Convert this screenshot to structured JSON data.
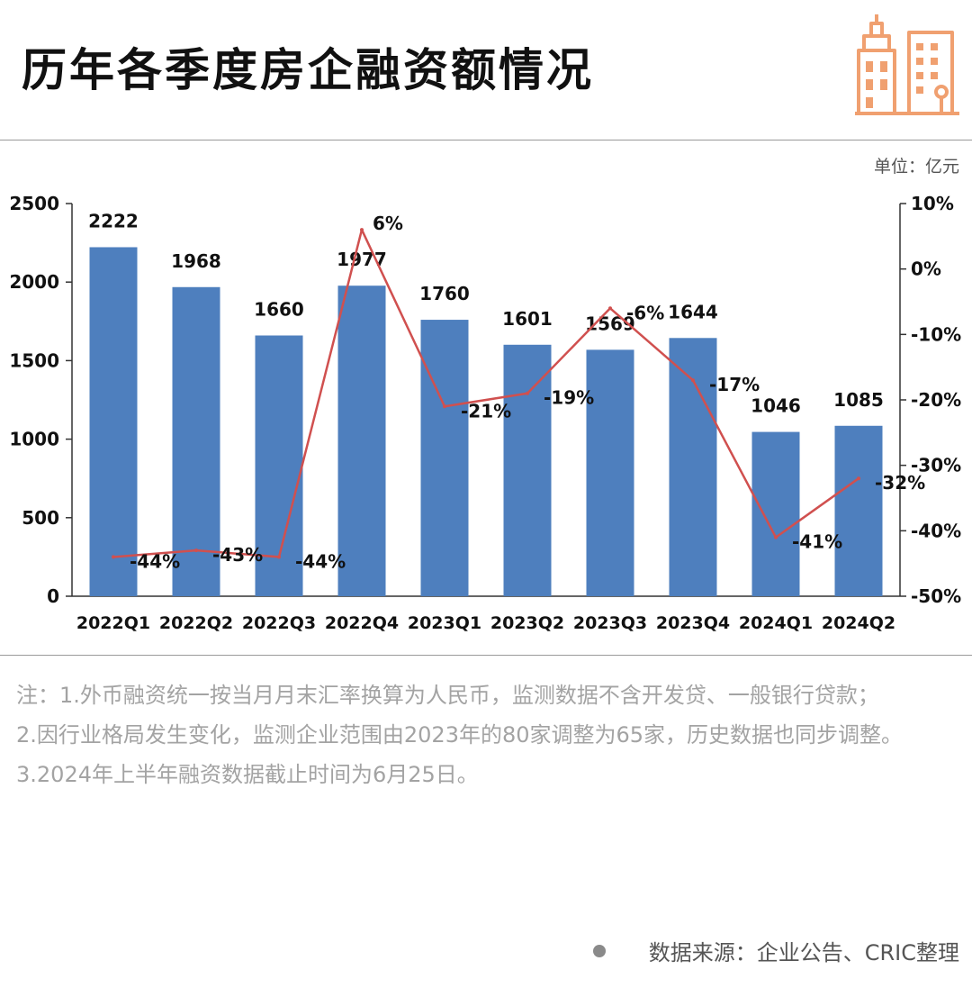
{
  "header": {
    "title": "历年各季度房企融资额情况",
    "unit": "单位：亿元",
    "logo_icon": "building-icon",
    "logo_color": "#F0A070"
  },
  "chart_data": {
    "type": "bar",
    "categories": [
      "2022Q1",
      "2022Q2",
      "2022Q3",
      "2022Q4",
      "2023Q1",
      "2023Q2",
      "2023Q3",
      "2023Q4",
      "2024Q1",
      "2024Q2"
    ],
    "series": [
      {
        "type": "bar",
        "axis": "left",
        "color": "#4E7FBE",
        "values": [
          2222,
          1968,
          1660,
          1977,
          1760,
          1601,
          1569,
          1644,
          1046,
          1085
        ],
        "labels": [
          "2222",
          "1968",
          "1660",
          "1977",
          "1760",
          "1601",
          "1569",
          "1644",
          "1046",
          "1085"
        ]
      },
      {
        "type": "line",
        "axis": "right",
        "color": "#D0504F",
        "values": [
          -44,
          -43,
          -44,
          6,
          -21,
          -19,
          -6,
          -17,
          -41,
          -32
        ],
        "labels": [
          "-44%",
          "-43%",
          "-44%",
          "6%",
          "-21%",
          "-19%",
          "-6%",
          "-17%",
          "-41%",
          "-32%"
        ]
      }
    ],
    "y_left": {
      "min": 0,
      "max": 2500,
      "ticks": [
        "0",
        "500",
        "1000",
        "1500",
        "2000",
        "2500"
      ]
    },
    "y_right": {
      "min": -50,
      "max": 10,
      "ticks": [
        "-50%",
        "-40%",
        "-30%",
        "-20%",
        "-10%",
        "0%",
        "10%"
      ]
    },
    "grid": false,
    "legend": "none"
  },
  "notes": [
    "注：1.外币融资统一按当月月末汇率换算为人民币，监测数据不含开发贷、一般银行贷款；",
    "2.因行业格局发生变化，监测企业范围由2023年的80家调整为65家，历史数据也同步调整。",
    "3.2024年上半年融资数据截止时间为6月25日。"
  ],
  "source": "数据来源：企业公告、CRIC整理"
}
